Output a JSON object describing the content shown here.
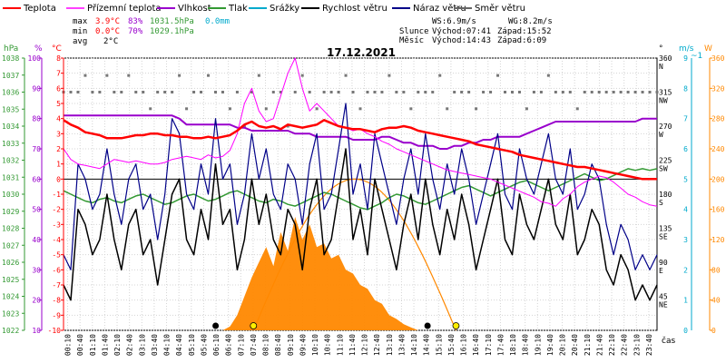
{
  "chart_data": {
    "type": "line",
    "title": "17.12.2021",
    "legend": [
      {
        "name": "Teplota",
        "color": "#ff0000"
      },
      {
        "name": "Přízemní teplota",
        "color": "#ff00ff"
      },
      {
        "name": "Vlhkost",
        "color": "#9900cc"
      },
      {
        "name": "Tlak",
        "color": "#339933"
      },
      {
        "name": "Srážky",
        "color": "#00aacc"
      },
      {
        "name": "Rychlost větru",
        "color": "#000000"
      },
      {
        "name": "Náraz větru",
        "color": "#000088"
      },
      {
        "name": "Směr větru",
        "color": "#666666"
      }
    ],
    "stats": {
      "max_label": "max",
      "min_label": "min",
      "avg_label": "avg",
      "max_temp": "3.9°C",
      "max_hum": "83%",
      "max_press": "1031.5hPa",
      "max_rain": "0.0mm",
      "min_temp": "0.0°C",
      "min_hum": "70%",
      "min_press": "1029.1hPa",
      "avg_temp": "2°C"
    },
    "info": {
      "ws": "WS:6.9m/s",
      "wg": "WG:8.2m/s",
      "sun_label": "Slunce",
      "sun_rise": "Východ:07:41",
      "sun_set": "Západ:15:52",
      "moon_label": "Měsíc",
      "moon_rise": "Východ:14:43",
      "moon_set": "Západ:6:09"
    },
    "axes": {
      "hpa_label": "hPa",
      "hpa_ticks": [
        "1022",
        "1023",
        "1024",
        "1025",
        "1026",
        "1027",
        "1028",
        "1029",
        "1030",
        "1031",
        "1032",
        "1033",
        "1034",
        "1035",
        "1036",
        "1037",
        "1038"
      ],
      "pct_label": "%",
      "pct_ticks": [
        "10",
        "20",
        "30",
        "40",
        "50",
        "60",
        "70",
        "80",
        "90",
        "100"
      ],
      "temp_label": "°C",
      "temp_ticks": [
        "-10",
        "-9",
        "-8",
        "-7",
        "-6",
        "-5",
        "-4",
        "-3",
        "-2",
        "-1",
        "0",
        "1",
        "2",
        "3",
        "4",
        "5",
        "6",
        "7",
        "8"
      ],
      "dir_unit": "°",
      "dir_ticks": [
        {
          "deg": "360",
          "name": "N"
        },
        {
          "deg": "315",
          "name": "NW"
        },
        {
          "deg": "270",
          "name": "W"
        },
        {
          "deg": "225",
          "name": "SW"
        },
        {
          "deg": "180",
          "name": "S"
        },
        {
          "deg": "135",
          "name": "SE"
        },
        {
          "deg": "90",
          "name": "E"
        },
        {
          "deg": "45",
          "name": "NE"
        }
      ],
      "wind_label": "m/s",
      "wind_ticks": [
        "0",
        "1",
        "2",
        "3",
        "4",
        "5",
        "6",
        "7",
        "8",
        "9"
      ],
      "rain_top_label": "~1",
      "solar_label": "W",
      "solar_ticks": [
        "0",
        "40",
        "80",
        "120",
        "160",
        "200",
        "240",
        "280",
        "320",
        "360"
      ],
      "time_label": "čas",
      "time_ticks": [
        "00:10",
        "00:40",
        "01:10",
        "01:40",
        "02:10",
        "02:40",
        "03:10",
        "03:40",
        "04:10",
        "04:40",
        "05:10",
        "05:40",
        "06:10",
        "06:40",
        "07:10",
        "07:40",
        "08:10",
        "08:40",
        "09:10",
        "09:40",
        "10:10",
        "10:40",
        "11:10",
        "11:40",
        "12:10",
        "12:40",
        "13:10",
        "13:40",
        "14:10",
        "14:40",
        "15:10",
        "15:40",
        "16:10",
        "16:40",
        "17:10",
        "17:40",
        "18:10",
        "18:40",
        "19:10",
        "19:40",
        "20:10",
        "20:40",
        "21:10",
        "21:40",
        "22:10",
        "22:40",
        "23:10",
        "23:40"
      ]
    },
    "series": {
      "temperature": [
        3.9,
        3.6,
        3.4,
        3.1,
        3.0,
        2.9,
        2.7,
        2.7,
        2.7,
        2.8,
        2.9,
        2.9,
        3.0,
        3.0,
        2.9,
        2.9,
        2.8,
        2.8,
        2.7,
        2.7,
        2.8,
        2.7,
        2.8,
        2.9,
        3.2,
        3.6,
        3.8,
        3.5,
        3.4,
        3.5,
        3.3,
        3.6,
        3.5,
        3.4,
        3.5,
        3.6,
        3.9,
        3.7,
        3.5,
        3.4,
        3.3,
        3.3,
        3.2,
        3.1,
        3.3,
        3.4,
        3.4,
        3.5,
        3.4,
        3.2,
        3.1,
        3.0,
        2.9,
        2.8,
        2.7,
        2.6,
        2.5,
        2.3,
        2.2,
        2.1,
        2.0,
        1.9,
        1.8,
        1.6,
        1.5,
        1.4,
        1.3,
        1.2,
        1.1,
        1.0,
        0.9,
        0.8,
        0.8,
        0.7,
        0.6,
        0.5,
        0.4,
        0.3,
        0.2,
        0.1,
        0.0,
        0.0,
        0.0
      ],
      "ground_temp": [
        2.0,
        1.3,
        1.0,
        0.9,
        0.8,
        0.7,
        1.0,
        1.3,
        1.2,
        1.1,
        1.2,
        1.1,
        1.0,
        1.0,
        1.1,
        1.3,
        1.4,
        1.5,
        1.4,
        1.3,
        1.6,
        1.4,
        1.5,
        1.9,
        3.0,
        5.0,
        6.0,
        4.5,
        3.8,
        4.0,
        5.5,
        7.0,
        8.0,
        6.0,
        4.5,
        5.0,
        4.5,
        4.0,
        3.5,
        3.4,
        3.2,
        3.3,
        3.0,
        2.8,
        2.5,
        2.3,
        2.0,
        1.8,
        1.6,
        1.4,
        1.2,
        1.0,
        0.8,
        0.6,
        0.5,
        0.4,
        0.3,
        0.2,
        0.1,
        0.0,
        -0.2,
        -0.4,
        -0.6,
        -0.8,
        -1.0,
        -1.2,
        -1.5,
        -1.6,
        -1.8,
        -1.3,
        -1.0,
        -0.5,
        -0.2,
        0.0,
        0.2,
        0.1,
        -0.2,
        -0.6,
        -1.0,
        -1.2,
        -1.5,
        -1.7,
        -1.8
      ],
      "humidity": [
        81,
        81,
        81,
        81,
        81,
        81,
        81,
        81,
        81,
        81,
        81,
        81,
        81,
        81,
        81,
        81,
        80,
        78,
        78,
        78,
        78,
        78,
        78,
        78,
        77,
        77,
        76,
        76,
        76,
        76,
        76,
        76,
        75,
        75,
        75,
        74,
        74,
        74,
        74,
        74,
        73,
        73,
        73,
        73,
        74,
        74,
        73,
        72,
        72,
        71,
        71,
        71,
        70,
        70,
        71,
        71,
        72,
        72,
        73,
        73,
        74,
        74,
        74,
        74,
        75,
        76,
        77,
        78,
        79,
        79,
        79,
        79,
        79,
        79,
        79,
        79,
        79,
        79,
        79,
        79,
        80,
        80,
        80
      ],
      "pressure": [
        1030.2,
        1030.0,
        1029.8,
        1029.6,
        1029.5,
        1029.7,
        1029.8,
        1029.6,
        1029.5,
        1029.7,
        1029.9,
        1030.0,
        1029.8,
        1029.6,
        1029.4,
        1029.5,
        1029.7,
        1029.9,
        1030.0,
        1029.8,
        1029.6,
        1029.7,
        1029.9,
        1030.1,
        1030.2,
        1030.0,
        1029.8,
        1029.6,
        1029.5,
        1029.7,
        1029.6,
        1029.4,
        1029.3,
        1029.5,
        1029.7,
        1029.9,
        1030.1,
        1030.0,
        1029.8,
        1029.6,
        1029.4,
        1029.2,
        1029.1,
        1029.3,
        1029.5,
        1029.8,
        1030.0,
        1029.9,
        1029.7,
        1029.5,
        1029.4,
        1029.6,
        1029.8,
        1030.0,
        1030.2,
        1030.4,
        1030.5,
        1030.3,
        1030.1,
        1029.9,
        1030.1,
        1030.3,
        1030.5,
        1030.7,
        1030.8,
        1030.6,
        1030.4,
        1030.2,
        1030.4,
        1030.6,
        1030.8,
        1031.0,
        1031.2,
        1031.0,
        1030.8,
        1030.9,
        1031.1,
        1031.3,
        1031.5,
        1031.4,
        1031.5,
        1031.4,
        1031.5
      ],
      "wind_speed": [
        1.5,
        1.0,
        4.0,
        3.5,
        2.5,
        3.0,
        4.5,
        3.0,
        2.0,
        3.5,
        4.0,
        2.5,
        3.0,
        1.5,
        3.0,
        4.5,
        5.0,
        3.0,
        2.5,
        4.0,
        3.0,
        5.5,
        3.5,
        4.0,
        2.0,
        3.0,
        5.0,
        3.5,
        4.5,
        3.0,
        2.5,
        4.0,
        3.5,
        2.0,
        4.0,
        5.0,
        2.5,
        3.0,
        4.5,
        6.0,
        3.0,
        4.0,
        2.5,
        5.0,
        4.0,
        3.0,
        2.0,
        3.5,
        4.5,
        3.0,
        5.0,
        3.5,
        2.5,
        4.0,
        3.0,
        4.5,
        3.5,
        2.0,
        3.0,
        4.0,
        5.0,
        3.0,
        2.5,
        4.5,
        3.5,
        3.0,
        4.0,
        5.0,
        3.5,
        3.0,
        4.5,
        2.5,
        3.0,
        4.0,
        3.5,
        2.0,
        1.5,
        2.5,
        2.0,
        1.0,
        1.5,
        1.0,
        1.5
      ],
      "wind_gust": [
        2.5,
        2.0,
        5.5,
        5.0,
        4.0,
        4.5,
        6.0,
        4.5,
        3.5,
        5.0,
        5.5,
        4.0,
        4.5,
        3.0,
        4.5,
        7.0,
        6.5,
        4.5,
        4.0,
        5.5,
        4.5,
        7.0,
        5.0,
        5.5,
        3.5,
        4.5,
        6.5,
        5.0,
        6.0,
        4.5,
        4.0,
        5.5,
        5.0,
        3.5,
        5.5,
        6.5,
        4.0,
        4.5,
        6.0,
        7.5,
        4.5,
        5.5,
        4.0,
        6.5,
        5.5,
        4.5,
        3.5,
        5.0,
        6.0,
        4.5,
        6.5,
        5.0,
        4.0,
        5.5,
        4.5,
        6.0,
        5.0,
        3.5,
        4.5,
        5.5,
        6.5,
        4.5,
        4.0,
        6.0,
        5.0,
        4.5,
        5.5,
        6.5,
        5.0,
        4.5,
        6.0,
        4.0,
        4.5,
        5.5,
        5.0,
        3.5,
        2.5,
        3.5,
        3.0,
        2.0,
        2.5,
        2.0,
        2.5
      ],
      "wind_dir": [
        315,
        315,
        315,
        337,
        315,
        315,
        337,
        315,
        315,
        337,
        315,
        315,
        293,
        315,
        315,
        315,
        337,
        293,
        315,
        315,
        337,
        315,
        315,
        293,
        315,
        270,
        315,
        337,
        293,
        315,
        315,
        270,
        315,
        337,
        315,
        293,
        315,
        315,
        315,
        337,
        315,
        293,
        315,
        315,
        315,
        337,
        315,
        315,
        293,
        315,
        315,
        315,
        337,
        293,
        315,
        315,
        315,
        293,
        315,
        315,
        337,
        315,
        315,
        315,
        293,
        315,
        315,
        337,
        315,
        315,
        315,
        293,
        315,
        315,
        315,
        315,
        315,
        315,
        315,
        315,
        315,
        315,
        315
      ],
      "solar": [
        0,
        0,
        0,
        0,
        0,
        0,
        0,
        0,
        0,
        0,
        0,
        0,
        0,
        0,
        0,
        0,
        0,
        0,
        0,
        0,
        0,
        0,
        0,
        5,
        20,
        45,
        70,
        90,
        110,
        85,
        130,
        105,
        150,
        120,
        140,
        110,
        115,
        95,
        100,
        80,
        75,
        60,
        55,
        40,
        35,
        20,
        15,
        8,
        4,
        0,
        0,
        0,
        0,
        0,
        0,
        0,
        0,
        0,
        0,
        0,
        0,
        0,
        0,
        0,
        0,
        0,
        0,
        0,
        0,
        0,
        0,
        0,
        0,
        0,
        0,
        0,
        0,
        0,
        0,
        0,
        0,
        0,
        0
      ],
      "solar_theoretical_peak": 200,
      "sunrise_hour": 7.68,
      "sunset_hour": 15.87,
      "moonrise_hour": 14.72,
      "moonset_hour": 6.15
    }
  }
}
